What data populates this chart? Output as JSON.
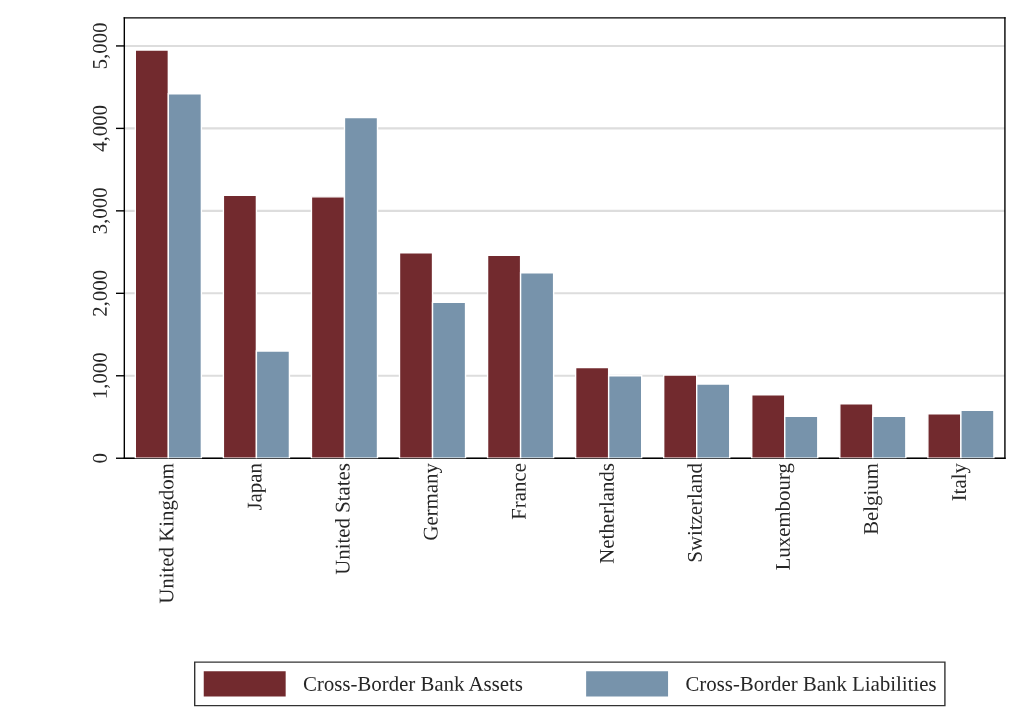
{
  "chart_data": {
    "type": "bar",
    "categories": [
      "United Kingdom",
      "Japan",
      "United States",
      "Germany",
      "France",
      "Netherlands",
      "Switzerland",
      "Luxembourg",
      "Belgium",
      "Italy"
    ],
    "series": [
      {
        "name": "Cross-Border Bank Assets",
        "color": "#722a2e",
        "values": [
          4950,
          3190,
          3170,
          2490,
          2460,
          1100,
          1010,
          770,
          660,
          540
        ]
      },
      {
        "name": "Cross-Border Bank Liabilities",
        "color": "#7793ab",
        "values": [
          4420,
          1300,
          4130,
          1890,
          2250,
          1000,
          900,
          510,
          510,
          580
        ]
      }
    ],
    "ylim": [
      0,
      5340
    ],
    "yticks": [
      0,
      {
        "value": 1000,
        "label": "1,000"
      },
      {
        "value": 2000,
        "label": "2,000"
      },
      {
        "value": 3000,
        "label": "3,000"
      },
      {
        "value": 4000,
        "label": "4,000"
      },
      {
        "value": 5000,
        "label": "5,000"
      }
    ],
    "grid": "y",
    "legend": "bottom"
  }
}
